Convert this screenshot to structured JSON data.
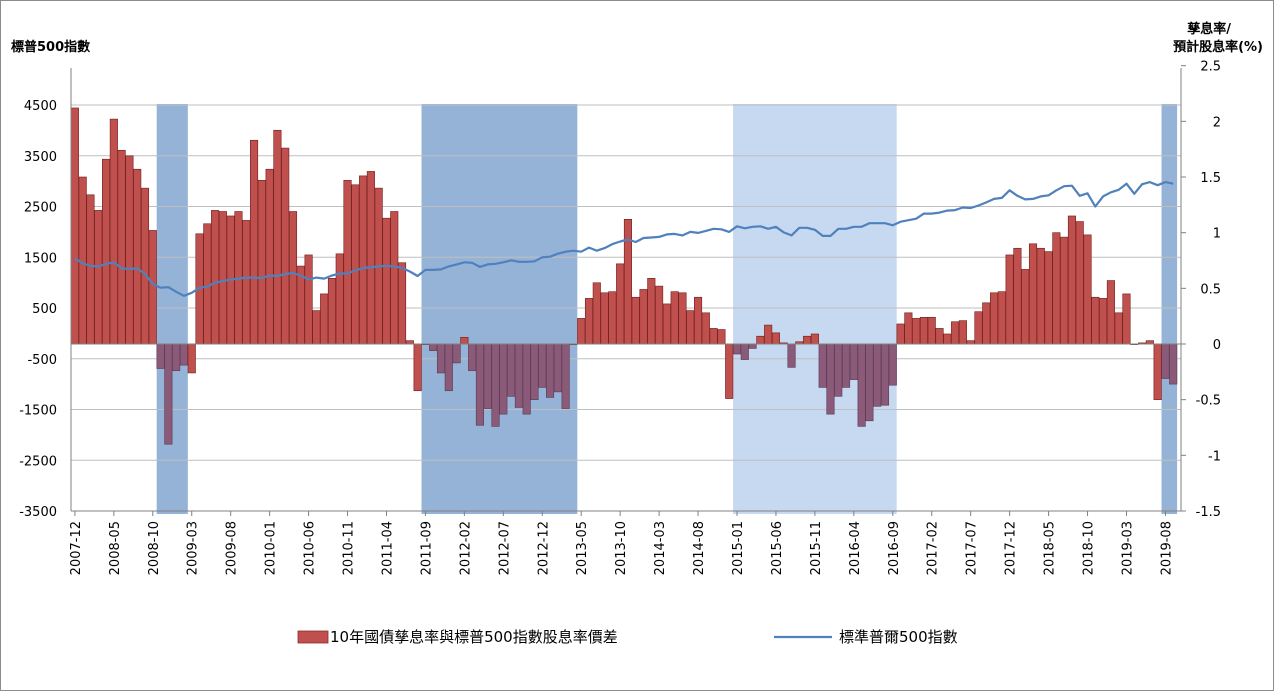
{
  "chart_data": {
    "type": "bar+line",
    "title": "",
    "left_axis_label": "標普500指數",
    "right_axis_label_line1": "孳息率/",
    "right_axis_label_line2": "預計股息率(%)",
    "left_ticks": [
      4500,
      3500,
      2500,
      1500,
      500,
      -500,
      -1500,
      -2500,
      -3500
    ],
    "right_ticks": [
      "2.5",
      "2",
      "1.5",
      "1",
      "0.5",
      "0",
      "-0.5",
      "-1",
      "-1.5"
    ],
    "right_ylim": [
      -1.5,
      2.5
    ],
    "x_tick_labels": [
      "2007-12",
      "2008-05",
      "2008-10",
      "2009-03",
      "2009-08",
      "2010-01",
      "2010-06",
      "2010-11",
      "2011-04",
      "2011-09",
      "2012-02",
      "2012-07",
      "2012-12",
      "2013-05",
      "2013-10",
      "2014-03",
      "2014-08",
      "2015-01",
      "2015-06",
      "2015-11",
      "2016-04",
      "2016-09",
      "2017-02",
      "2017-07",
      "2017-12",
      "2018-05",
      "2018-10",
      "2019-03",
      "2019-08"
    ],
    "start_month": "2007-12",
    "shaded_periods": [
      {
        "start": "2008-11",
        "end": "2009-02",
        "color": "#95b3d7"
      },
      {
        "start": "2011-09",
        "end": "2013-04",
        "color": "#95b3d7"
      },
      {
        "start": "2015-01",
        "end": "2016-09",
        "color": "#c6d9f0"
      },
      {
        "start": "2019-08",
        "end": "2019-09",
        "color": "#95b3d7"
      }
    ],
    "series": [
      {
        "name": "10年國債孳息率與標普500指數股息率價差",
        "type": "bar",
        "axis": "right",
        "color": "#c0504d",
        "values": [
          2.12,
          1.5,
          1.34,
          1.2,
          1.66,
          2.02,
          1.74,
          1.69,
          1.57,
          1.4,
          1.02,
          -0.22,
          -0.9,
          -0.24,
          -0.19,
          -0.26,
          0.99,
          1.08,
          1.2,
          1.19,
          1.15,
          1.19,
          1.11,
          1.83,
          1.47,
          1.57,
          1.92,
          1.76,
          1.19,
          0.7,
          0.8,
          0.3,
          0.45,
          0.59,
          0.81,
          1.47,
          1.43,
          1.51,
          1.55,
          1.4,
          1.13,
          1.19,
          0.73,
          0.03,
          -0.42,
          0,
          -0.06,
          -0.26,
          -0.42,
          -0.17,
          0.06,
          -0.24,
          -0.73,
          -0.58,
          -0.74,
          -0.63,
          -0.47,
          -0.57,
          -0.63,
          -0.5,
          -0.39,
          -0.48,
          -0.43,
          -0.58,
          0,
          0.23,
          0.41,
          0.55,
          0.46,
          0.47,
          0.72,
          1.12,
          0.42,
          0.49,
          0.59,
          0.52,
          0.36,
          0.47,
          0.46,
          0.3,
          0.42,
          0.28,
          0.14,
          0.13,
          -0.49,
          -0.09,
          -0.14,
          -0.04,
          0.07,
          0.17,
          0.1,
          0.01,
          -0.21,
          0.02,
          0.07,
          0.09,
          -0.39,
          -0.63,
          -0.47,
          -0.39,
          -0.32,
          -0.74,
          -0.69,
          -0.56,
          -0.55,
          -0.37,
          0.18,
          0.28,
          0.23,
          0.24,
          0.24,
          0.14,
          0.09,
          0.2,
          0.21,
          0.03,
          0.29,
          0.37,
          0.46,
          0.47,
          0.8,
          0.86,
          0.67,
          0.9,
          0.86,
          0.83,
          1.0,
          0.96,
          1.15,
          1.1,
          0.98,
          0.42,
          0.41,
          0.57,
          0.28,
          0.45,
          0,
          0.01,
          0.03,
          -0.5,
          -0.31,
          -0.36
        ]
      },
      {
        "name": "標準普爾500指數",
        "type": "line",
        "axis": "left",
        "color": "#4f81bd",
        "values": [
          1480,
          1380,
          1330,
          1320,
          1370,
          1400,
          1280,
          1270,
          1280,
          1170,
          970,
          900,
          910,
          820,
          740,
          800,
          900,
          920,
          1000,
          1030,
          1060,
          1080,
          1100,
          1100,
          1090,
          1140,
          1130,
          1170,
          1190,
          1140,
          1060,
          1100,
          1080,
          1140,
          1180,
          1180,
          1240,
          1290,
          1300,
          1320,
          1330,
          1320,
          1290,
          1220,
          1130,
          1250,
          1250,
          1260,
          1320,
          1360,
          1400,
          1390,
          1310,
          1360,
          1370,
          1400,
          1440,
          1410,
          1410,
          1420,
          1500,
          1510,
          1570,
          1610,
          1630,
          1610,
          1690,
          1630,
          1680,
          1760,
          1810,
          1850,
          1800,
          1880,
          1890,
          1900,
          1950,
          1960,
          1930,
          2000,
          1980,
          2020,
          2060,
          2050,
          2000,
          2110,
          2070,
          2100,
          2110,
          2060,
          2100,
          1990,
          1930,
          2080,
          2080,
          2040,
          1920,
          1920,
          2060,
          2060,
          2100,
          2100,
          2170,
          2170,
          2170,
          2130,
          2200,
          2230,
          2260,
          2360,
          2360,
          2380,
          2420,
          2430,
          2480,
          2470,
          2520,
          2580,
          2650,
          2670,
          2820,
          2710,
          2640,
          2650,
          2700,
          2720,
          2820,
          2900,
          2910,
          2710,
          2760,
          2500,
          2700,
          2780,
          2830,
          2950,
          2750,
          2940,
          2980,
          2920,
          2980,
          2950
        ]
      }
    ],
    "legend_position": "bottom"
  }
}
